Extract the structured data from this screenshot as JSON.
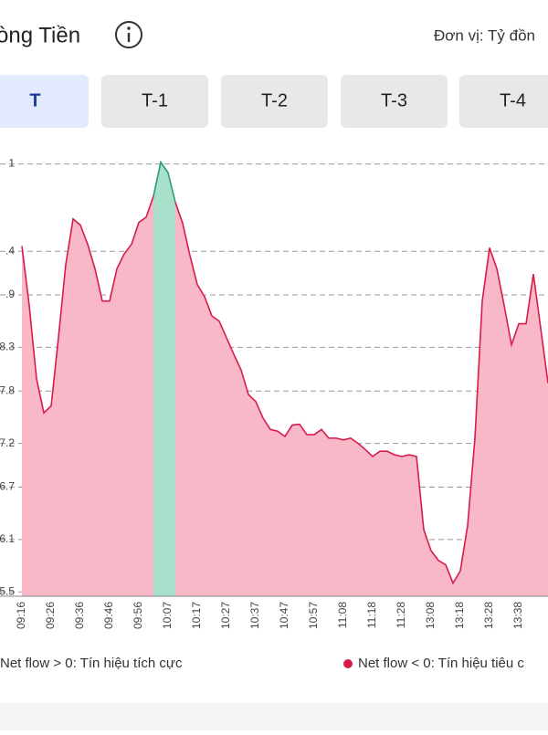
{
  "header": {
    "title": "òng Tiền",
    "unit": "Đơn vị: Tỷ đồn"
  },
  "tabs": [
    "T",
    "T-1",
    "T-2",
    "T-3",
    "T-4"
  ],
  "chart_data": {
    "type": "area",
    "categories": [
      "09:16",
      null,
      null,
      null,
      "09:26",
      null,
      null,
      null,
      "09:36",
      null,
      null,
      null,
      "09:46",
      null,
      null,
      null,
      "09:56",
      null,
      null,
      null,
      "10:07",
      null,
      null,
      null,
      "10:17",
      null,
      null,
      null,
      "10:27",
      null,
      null,
      null,
      "10:37",
      null,
      null,
      null,
      "10:47",
      null,
      null,
      null,
      "10:57",
      null,
      null,
      null,
      "11:08",
      null,
      null,
      null,
      "11:18",
      null,
      null,
      null,
      "11:28",
      null,
      null,
      null,
      "13:08",
      null,
      null,
      null,
      "13:18",
      null,
      null,
      null,
      "13:28",
      null,
      null,
      null,
      "13:38",
      null,
      null,
      null,
      null
    ],
    "series": [
      {
        "name": "Net flow > 0: Tín hiệu tích cực",
        "color": "#2e9e6e",
        "fill": "#a8e0cc",
        "values": [
          null,
          null,
          null,
          null,
          null,
          null,
          null,
          null,
          null,
          null,
          null,
          null,
          null,
          null,
          null,
          null,
          null,
          null,
          10.03,
          10.42,
          10.3,
          9.96,
          null,
          null,
          null,
          null,
          null,
          null,
          null,
          null,
          null,
          null,
          null,
          null,
          null,
          null,
          null,
          null,
          null,
          null,
          null,
          null,
          null,
          null,
          null,
          null,
          null,
          null,
          null,
          null,
          null,
          null,
          null,
          null,
          null,
          null,
          null,
          null,
          null,
          null,
          null,
          null,
          null,
          null,
          null,
          null,
          null,
          null,
          null,
          null,
          null,
          null,
          null
        ]
      },
      {
        "name": "Net flow < 0: Tín hiệu tiêu c",
        "color": "#d81b4a",
        "fill": "#f8b8c8",
        "values": [
          9.46,
          8.78,
          7.94,
          7.55,
          7.63,
          8.41,
          9.25,
          9.77,
          9.7,
          9.48,
          9.2,
          8.83,
          8.83,
          9.2,
          9.37,
          9.48,
          9.73,
          9.79,
          10.03,
          null,
          null,
          9.96,
          9.72,
          9.35,
          9.02,
          8.88,
          8.66,
          8.6,
          8.41,
          8.22,
          8.04,
          7.76,
          7.68,
          7.49,
          7.36,
          7.34,
          7.28,
          7.41,
          7.42,
          7.3,
          7.3,
          7.36,
          7.26,
          7.26,
          7.24,
          7.26,
          7.2,
          7.13,
          7.05,
          7.11,
          7.11,
          7.07,
          7.05,
          7.07,
          7.05,
          6.21,
          5.97,
          5.86,
          5.81,
          5.6,
          5.74,
          6.26,
          7.26,
          8.83,
          9.44,
          9.2,
          8.78,
          8.33,
          8.57,
          8.57,
          9.14,
          8.52,
          7.89
        ]
      }
    ],
    "ylim": [
      5.45,
      10.5
    ],
    "yticks": [
      {
        "value": 10.4,
        "label": "1"
      },
      {
        "value": 9.4,
        "label": ".4"
      },
      {
        "value": 8.9,
        "label": ".9"
      },
      8.3,
      7.8,
      7.2,
      6.7,
      6.1,
      5.5
    ],
    "grid": true
  }
}
